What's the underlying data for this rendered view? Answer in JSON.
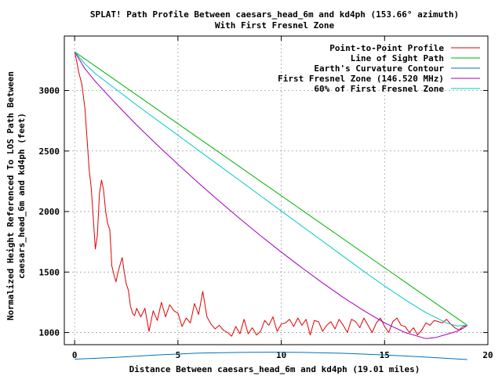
{
  "chart_data": {
    "type": "line",
    "title": "SPLAT! Path Profile Between caesars_head_6m and kd4ph (153.66° azimuth)",
    "subtitle": "With First Fresnel Zone",
    "xlabel": "Distance Between caesars_head_6m and kd4ph (19.01 miles)",
    "ylabel_line1": "Normalized Height Referenced To LOS Path Between",
    "ylabel_line2": "caesars_head_6m and kd4ph (feet)",
    "xlim": [
      -0.5,
      20
    ],
    "ylim": [
      900,
      3450
    ],
    "grid": true,
    "legend_position": "top-right",
    "x_ticks": [
      0,
      5,
      10,
      15,
      20
    ],
    "y_ticks": [
      1000,
      1500,
      2000,
      2500,
      3000
    ],
    "series": [
      {
        "name": "Point-to-Point Profile",
        "color": "#e00000",
        "x": [
          0,
          0.1,
          0.2,
          0.35,
          0.5,
          0.6,
          0.7,
          0.8,
          0.9,
          1.0,
          1.1,
          1.2,
          1.3,
          1.4,
          1.5,
          1.6,
          1.7,
          1.8,
          1.9,
          2.0,
          2.1,
          2.2,
          2.3,
          2.4,
          2.5,
          2.6,
          2.7,
          2.8,
          2.9,
          3.0,
          3.2,
          3.4,
          3.6,
          3.8,
          4.0,
          4.2,
          4.4,
          4.6,
          4.8,
          5.0,
          5.2,
          5.4,
          5.6,
          5.8,
          6.0,
          6.2,
          6.4,
          6.6,
          6.8,
          7.0,
          7.2,
          7.4,
          7.6,
          7.8,
          8.0,
          8.2,
          8.4,
          8.6,
          8.8,
          9.0,
          9.2,
          9.4,
          9.6,
          9.8,
          10.0,
          10.2,
          10.4,
          10.6,
          10.8,
          11.0,
          11.2,
          11.4,
          11.6,
          11.8,
          12.0,
          12.2,
          12.4,
          12.6,
          12.8,
          13.0,
          13.2,
          13.4,
          13.6,
          13.8,
          14.0,
          14.2,
          14.4,
          14.6,
          14.8,
          15.0,
          15.2,
          15.4,
          15.6,
          15.8,
          16.0,
          16.2,
          16.4,
          16.6,
          16.8,
          17.0,
          17.2,
          17.4,
          17.6,
          17.8,
          18.0,
          18.2,
          18.4,
          18.6,
          18.8,
          19.0
        ],
        "y": [
          3320,
          3240,
          3150,
          3050,
          2850,
          2600,
          2350,
          2200,
          1950,
          1690,
          1800,
          2150,
          2260,
          2180,
          2000,
          1900,
          1850,
          1550,
          1480,
          1420,
          1500,
          1560,
          1620,
          1500,
          1400,
          1350,
          1220,
          1160,
          1140,
          1200,
          1130,
          1200,
          1010,
          1180,
          1100,
          1250,
          1130,
          1230,
          1180,
          1160,
          1050,
          1120,
          1080,
          1240,
          1150,
          1340,
          1130,
          1070,
          1030,
          1060,
          1020,
          1000,
          970,
          1050,
          990,
          1110,
          990,
          1040,
          980,
          1010,
          1100,
          1060,
          1130,
          1010,
          1070,
          1080,
          1110,
          1050,
          1120,
          1060,
          1110,
          980,
          1100,
          1090,
          1010,
          1060,
          1090,
          1030,
          1110,
          1060,
          1000,
          1110,
          1090,
          1040,
          1120,
          1060,
          1000,
          1080,
          1120,
          1050,
          1000,
          1090,
          1120,
          1060,
          1050,
          1000,
          1040,
          980,
          1020,
          1080,
          1060,
          1100,
          1090,
          1080,
          1110,
          1070,
          1040,
          1020,
          1050,
          1060
        ]
      },
      {
        "name": "Line of Sight Path",
        "color": "#00b000",
        "x": [
          0,
          19
        ],
        "y": [
          3320,
          1060
        ]
      },
      {
        "name": "Earth's Curvature Contour",
        "color": "#0070c0",
        "x": [
          0,
          2,
          4,
          6,
          8,
          9.5,
          11,
          13,
          15,
          17,
          19
        ],
        "y": [
          780,
          795,
          815,
          830,
          836,
          838,
          836,
          829,
          815,
          797,
          777
        ]
      },
      {
        "name": "First Fresnel Zone (146.520 MHz)",
        "color": "#a000c0",
        "x": [
          0,
          0.5,
          1,
          2,
          3,
          4,
          5,
          6,
          7,
          8,
          9,
          10,
          11,
          12,
          13,
          14,
          15,
          16,
          17,
          17.5,
          18,
          18.5,
          18.8,
          19
        ],
        "y": [
          3320,
          3180,
          3075,
          2890,
          2715,
          2550,
          2390,
          2235,
          2085,
          1940,
          1800,
          1665,
          1535,
          1410,
          1290,
          1180,
          1080,
          1000,
          950,
          960,
          985,
          1010,
          1035,
          1060
        ]
      },
      {
        "name": "60% of First Fresnel Zone",
        "color": "#00c8c8",
        "x": [
          0,
          0.5,
          1,
          2,
          3,
          4,
          5,
          6,
          7,
          8,
          9,
          10,
          11,
          12,
          13,
          14,
          15,
          16,
          17,
          18,
          18.5,
          19
        ],
        "y": [
          3320,
          3220,
          3140,
          3010,
          2880,
          2755,
          2630,
          2505,
          2380,
          2255,
          2130,
          2005,
          1880,
          1755,
          1630,
          1505,
          1385,
          1270,
          1165,
          1080,
          1055,
          1060
        ]
      }
    ]
  }
}
